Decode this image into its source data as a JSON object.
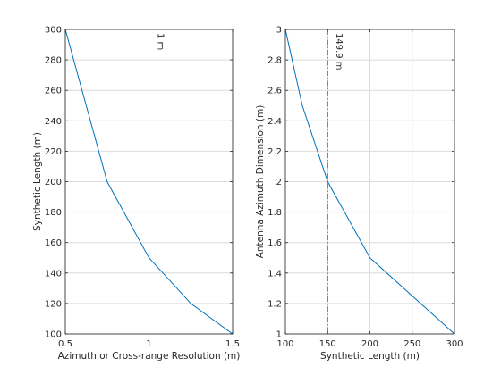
{
  "chart_data": [
    {
      "type": "line",
      "title": "",
      "xlabel": "Azimuth or Cross-range Resolution (m)",
      "ylabel": "Synthetic Length (m)",
      "xlim": [
        0.5,
        1.5
      ],
      "ylim": [
        100,
        300
      ],
      "xticks": [
        "0.5",
        "1",
        "1.5"
      ],
      "yticks": [
        "100",
        "120",
        "140",
        "160",
        "180",
        "200",
        "220",
        "240",
        "260",
        "280",
        "300"
      ],
      "grid": true,
      "series": [
        {
          "x": [
            0.5,
            0.75,
            1.0,
            1.25,
            1.5
          ],
          "y": [
            300,
            200,
            150,
            120,
            100
          ],
          "color": "#0072bd"
        }
      ],
      "vline": {
        "x": 1.0,
        "label": "1 m"
      }
    },
    {
      "type": "line",
      "title": "",
      "xlabel": "Synthetic Length (m)",
      "ylabel": "Antenna Azimuth Dimension (m)",
      "xlim": [
        100,
        300
      ],
      "ylim": [
        1,
        3
      ],
      "xticks": [
        "100",
        "150",
        "200",
        "250",
        "300"
      ],
      "yticks": [
        "1",
        "1.2",
        "1.4",
        "1.6",
        "1.8",
        "2",
        "2.2",
        "2.4",
        "2.6",
        "2.8",
        "3"
      ],
      "grid": true,
      "series": [
        {
          "x": [
            100,
            120,
            150,
            200,
            300
          ],
          "y": [
            3.0,
            2.5,
            2.0,
            1.5,
            1.0
          ],
          "color": "#0072bd"
        }
      ],
      "vline": {
        "x": 149.9,
        "label": "149.9 m"
      }
    }
  ]
}
